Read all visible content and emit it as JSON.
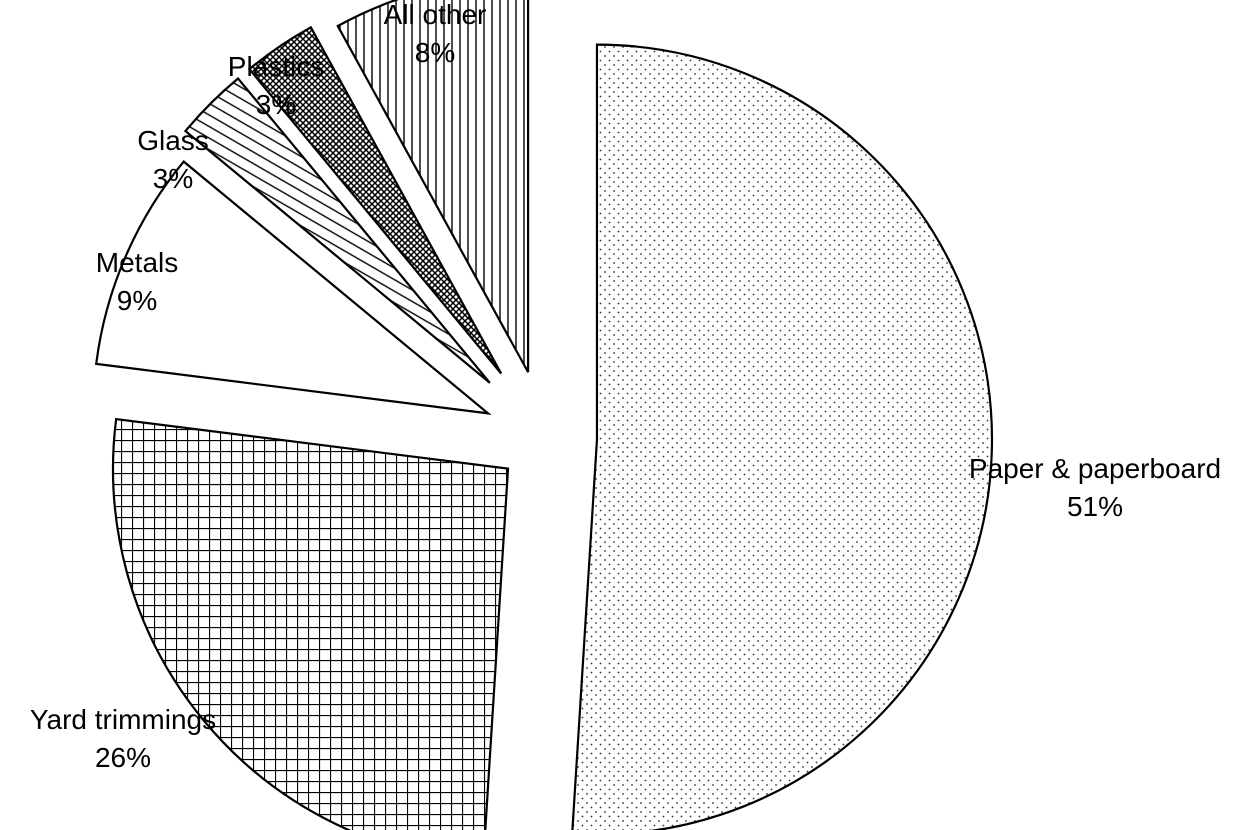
{
  "chart_data": {
    "type": "pie",
    "title": "",
    "slices": [
      {
        "label": "Paper & paperboard",
        "value": 51,
        "value_label": "51%",
        "pattern": "dots"
      },
      {
        "label": "Yard trimmings",
        "value": 26,
        "value_label": "26%",
        "pattern": "grid"
      },
      {
        "label": "Metals",
        "value": 9,
        "value_label": "9%",
        "pattern": "none"
      },
      {
        "label": "Glass",
        "value": 3,
        "value_label": "3%",
        "pattern": "diagonal-stripes"
      },
      {
        "label": "Plastics",
        "value": 3,
        "value_label": "3%",
        "pattern": "dense-crosshatch"
      },
      {
        "label": "All other",
        "value": 8,
        "value_label": "8%",
        "pattern": "vertical-stripes"
      }
    ],
    "start_angle": "12 o'clock",
    "direction": "clockwise",
    "exploded": true,
    "legend": "none",
    "colors": {
      "stroke": "#000000",
      "background": "#ffffff"
    }
  }
}
